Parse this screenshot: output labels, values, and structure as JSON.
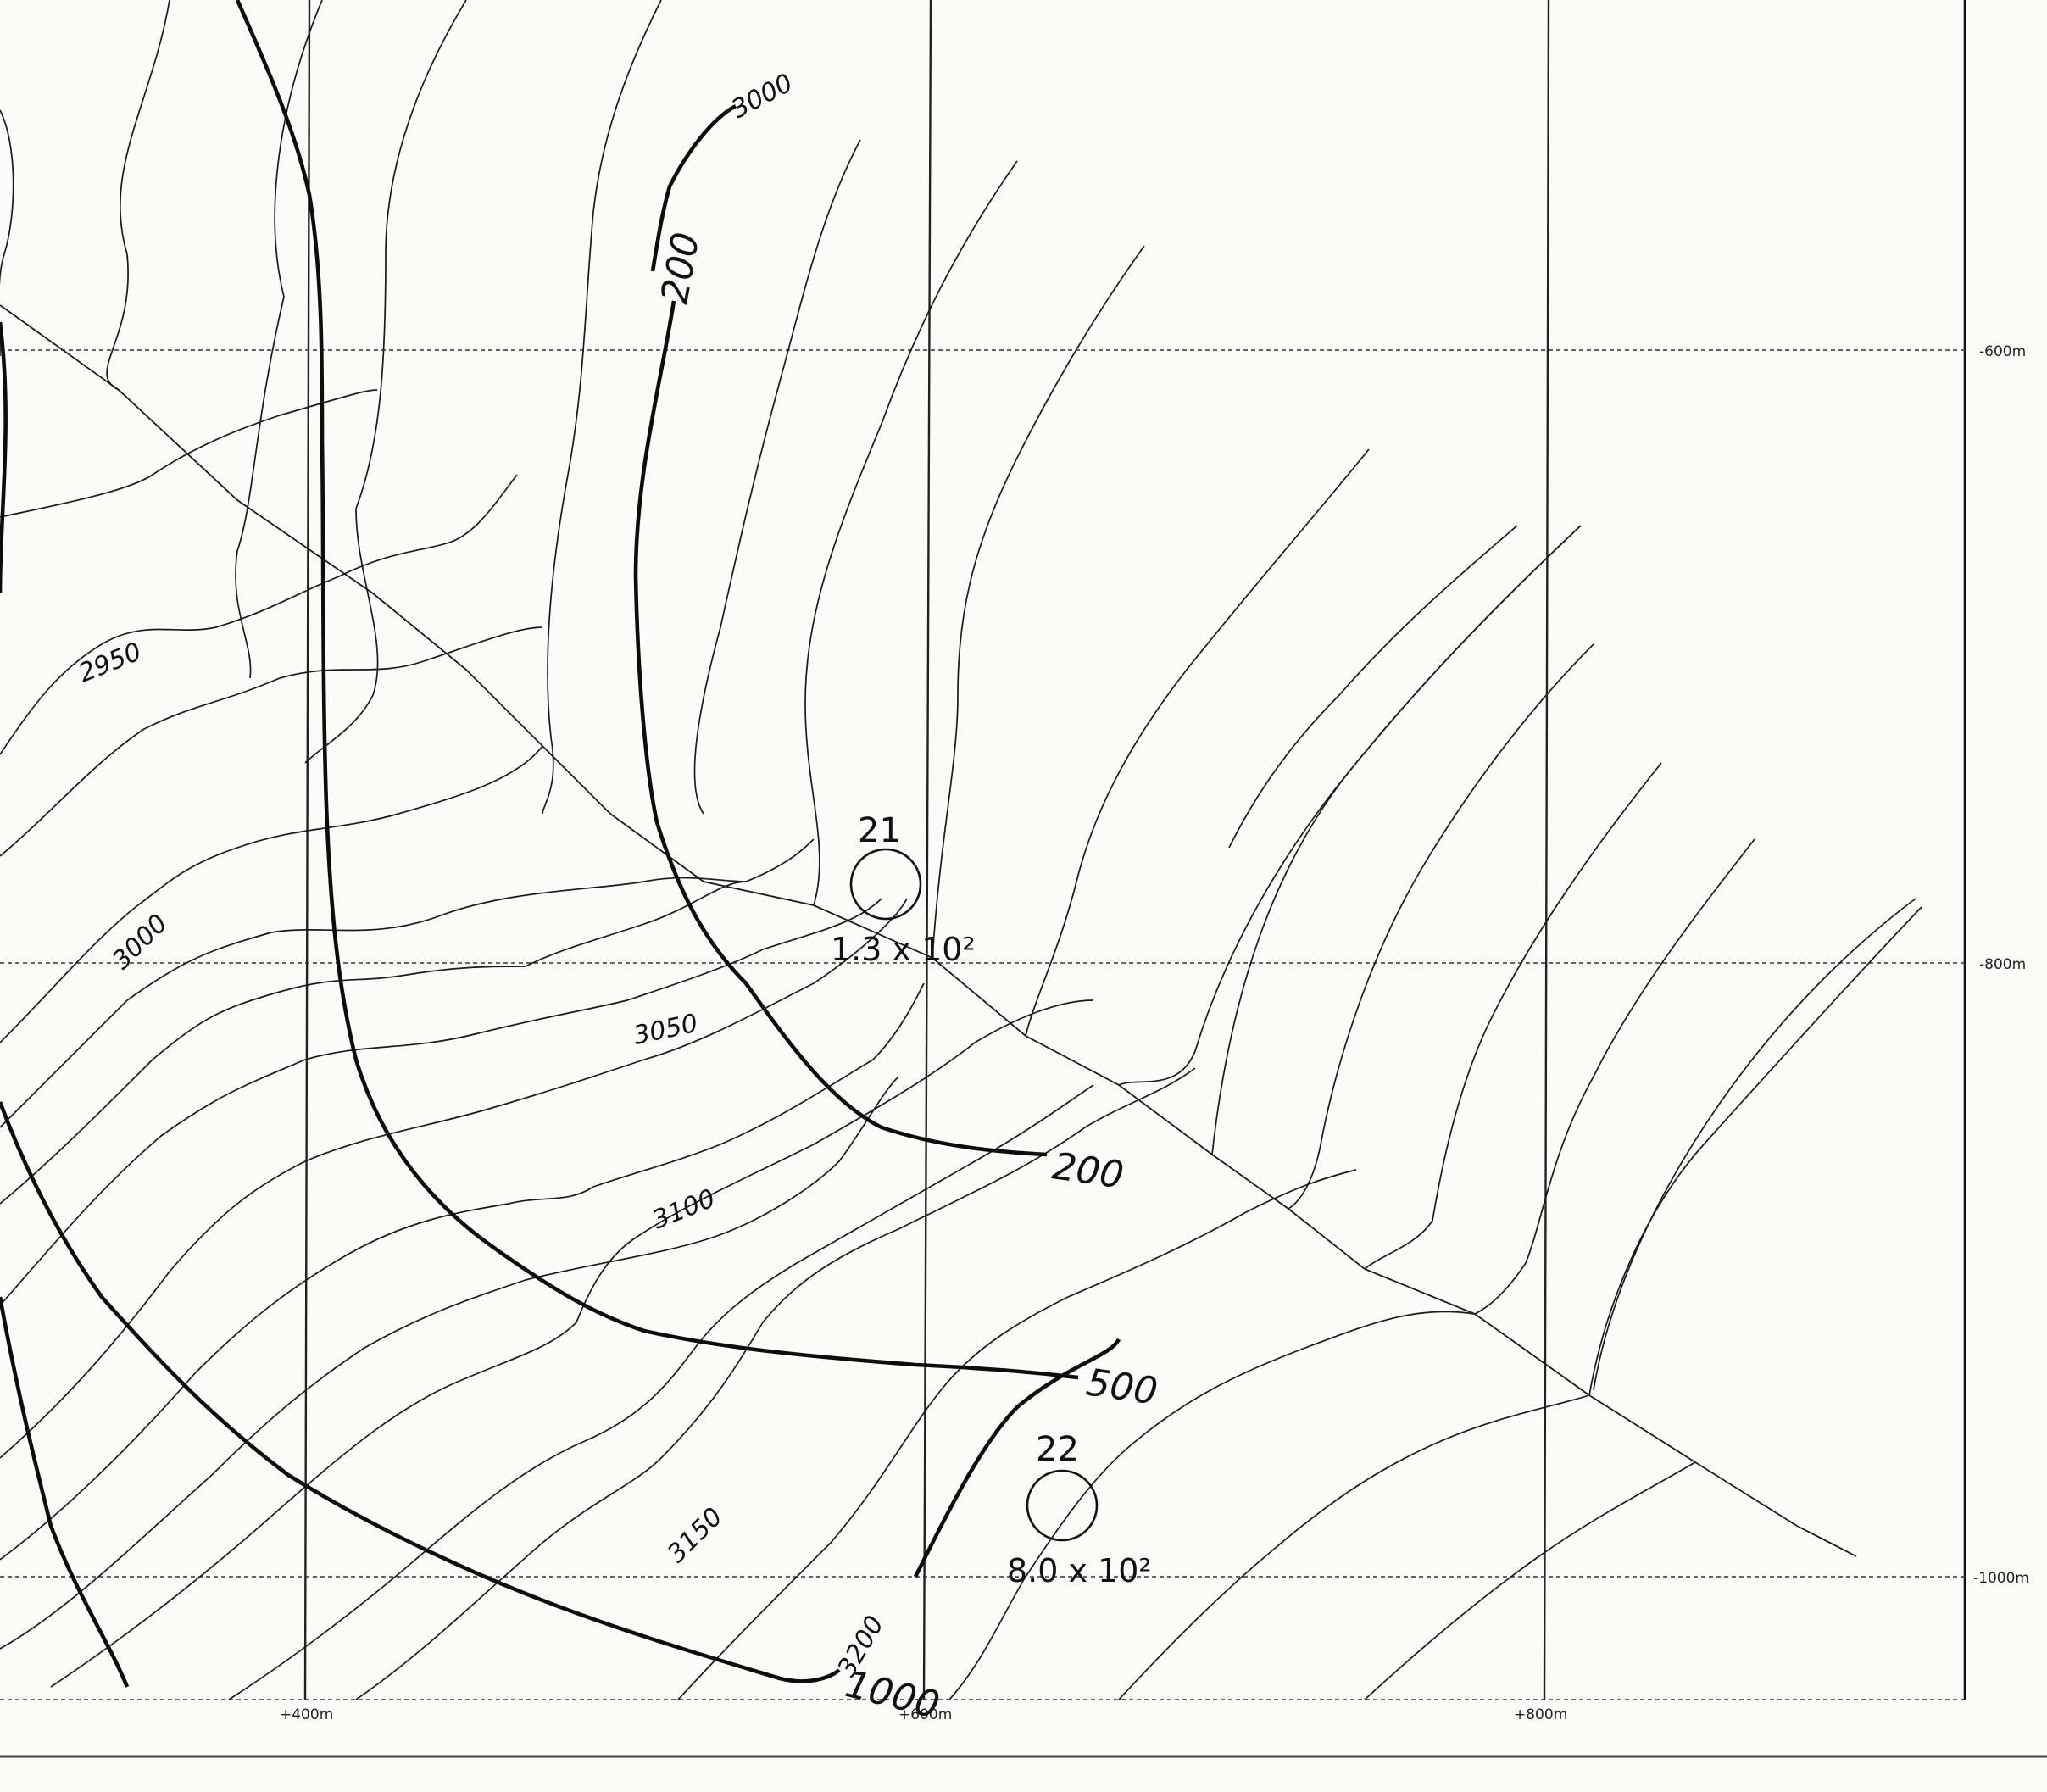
{
  "map": {
    "grid": {
      "x_labels": [
        "+400m",
        "+600m",
        "+800m"
      ],
      "y_labels": [
        "-600m",
        "-800m",
        "-1000m"
      ]
    },
    "elevation_contours": {
      "labels": [
        "3000",
        "2950",
        "3000",
        "3050",
        "3100",
        "3150",
        "3200"
      ]
    },
    "isolines": {
      "labels": [
        "200",
        "200",
        "500",
        "1000"
      ]
    },
    "stations": [
      {
        "number": "21",
        "value": "1.3 x 10²"
      },
      {
        "number": "22",
        "value": "8.0 x 10²"
      }
    ]
  }
}
